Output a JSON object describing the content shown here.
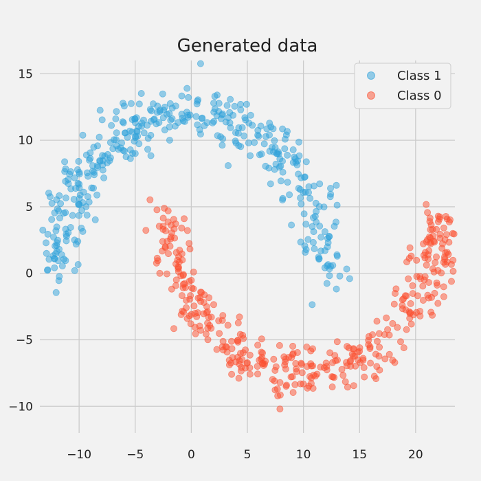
{
  "chart_data": {
    "type": "scatter",
    "title": "Generated data",
    "xlabel": "",
    "ylabel": "",
    "xlim": [
      -13.5,
      23.5
    ],
    "ylim": [
      -12,
      16
    ],
    "xticks": [
      -10,
      -5,
      0,
      5,
      10,
      15,
      20
    ],
    "yticks": [
      -10,
      -5,
      0,
      5,
      10,
      15
    ],
    "xtick_labels": [
      "−10",
      "−5",
      "0",
      "5",
      "10",
      "15",
      "20"
    ],
    "ytick_labels": [
      "−10",
      "−5",
      "0",
      "5",
      "10",
      "15"
    ],
    "grid": true,
    "legend_position": "top-right",
    "legend": [
      {
        "label": "Class 1",
        "color": "#30a2da"
      },
      {
        "label": "Class 0",
        "color": "#fc4f30"
      }
    ],
    "series": [
      {
        "name": "Class 1",
        "color": "#30a2da",
        "opacity": 0.5,
        "moon": {
          "cx": 0,
          "cy": 0,
          "r": 12.0,
          "from_deg": 0,
          "to_deg": 180,
          "n": 400,
          "noise": 1.0
        }
      },
      {
        "name": "Class 0",
        "color": "#fc4f30",
        "opacity": 0.5,
        "moon": {
          "cx": 10,
          "cy": 4.5,
          "r": 12.0,
          "from_deg": 180,
          "to_deg": 360,
          "n": 400,
          "noise": 1.0
        }
      }
    ]
  }
}
